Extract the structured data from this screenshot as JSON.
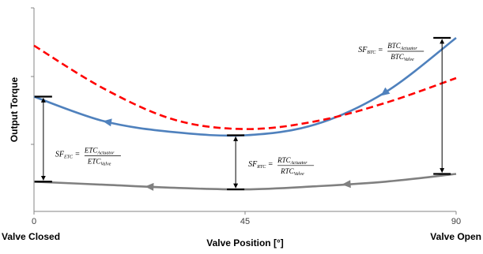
{
  "chart_data": {
    "type": "line",
    "xlabel": "Valve Position [°]",
    "ylabel": "Output Torque",
    "x_ticks": [
      "0",
      "45",
      "90"
    ],
    "xlim": [
      0,
      90
    ],
    "y_ticks_labeled": false,
    "grid": false,
    "legend": "none",
    "corner_labels": {
      "left": "Valve Closed",
      "right": "Valve Open"
    },
    "series": [
      {
        "role": "actuator",
        "style": "solid",
        "color": "#4F81BD",
        "points": [
          [
            0,
            0.62
          ],
          [
            15,
            0.46
          ],
          [
            30,
            0.39
          ],
          [
            45,
            0.37
          ],
          [
            60,
            0.44
          ],
          [
            75,
            0.65
          ],
          [
            90,
            1.0
          ]
        ]
      },
      {
        "role": "valve",
        "style": "dashed",
        "color": "#FF0000",
        "points": [
          [
            0,
            0.95
          ],
          [
            15,
            0.67
          ],
          [
            30,
            0.47
          ],
          [
            45,
            0.41
          ],
          [
            60,
            0.46
          ],
          [
            75,
            0.58
          ],
          [
            90,
            0.74
          ]
        ]
      },
      {
        "role": "valve",
        "style": "solid",
        "color": "#808080",
        "points": [
          [
            0,
            0.07
          ],
          [
            15,
            0.05
          ],
          [
            30,
            0.03
          ],
          [
            45,
            0.02
          ],
          [
            60,
            0.04
          ],
          [
            75,
            0.07
          ],
          [
            90,
            0.12
          ]
        ]
      }
    ],
    "annotations": [
      {
        "x": 2,
        "y_top": 0.62,
        "y_bottom": 0.07,
        "label_sub": "ETC",
        "num_sub": "Actuator",
        "den_sub": "Valve"
      },
      {
        "x": 43,
        "y_top": 0.37,
        "y_bottom": 0.02,
        "label_sub": "RTC",
        "num_sub": "Actuator",
        "den_sub": "Valve"
      },
      {
        "x": 87,
        "y_top": 1.0,
        "y_bottom": 0.12,
        "label_sub": "BTC",
        "num_sub": "Actuator",
        "den_sub": "Valve"
      }
    ]
  }
}
